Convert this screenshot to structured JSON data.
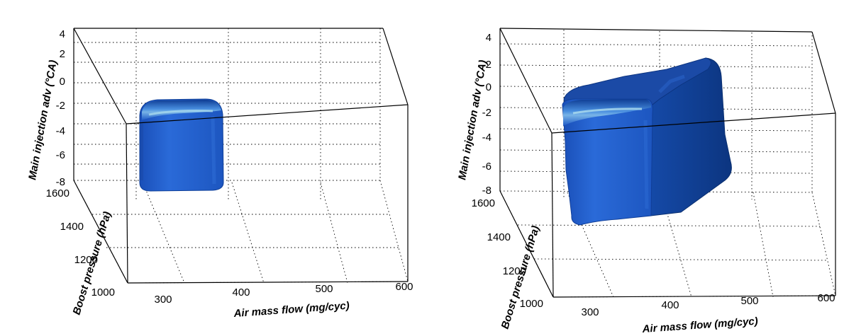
{
  "chart_data": [
    {
      "type": "isosurface-3d",
      "xlabel": "Air mass flow (mg/cyc)",
      "ylabel": "Boost pressure (hPa)",
      "zlabel": "Main injection adv (°CA)",
      "xlim": [
        250,
        600
      ],
      "ylim": [
        1000,
        1600
      ],
      "zlim": [
        -8,
        4
      ],
      "x_ticks": [
        "300",
        "400",
        "500",
        "600"
      ],
      "y_ticks": [
        "1000",
        "1200",
        "1400",
        "1600"
      ],
      "z_ticks": [
        "4",
        "2",
        "0",
        "-2",
        "-4",
        "-6",
        "-8"
      ],
      "grid": true,
      "surface_color": "#1f5cc8",
      "region": {
        "x": [
          300,
          360
        ],
        "y": [
          1580,
          1600
        ],
        "z": [
          -8,
          -1.5
        ]
      }
    },
    {
      "type": "isosurface-3d",
      "xlabel": "Air mass flow (mg/cyc)",
      "ylabel": "Boost pressure (hPa)",
      "zlabel": "Main injection adv (°CA)",
      "xlim": [
        250,
        600
      ],
      "ylim": [
        1000,
        1600
      ],
      "zlim": [
        -8,
        4
      ],
      "x_ticks": [
        "300",
        "400",
        "500",
        "600"
      ],
      "y_ticks": [
        "1000",
        "1200",
        "1400",
        "1600"
      ],
      "z_ticks": [
        "4",
        "2",
        "0",
        "-2",
        "-4",
        "-6",
        "-8"
      ],
      "grid": true,
      "surface_color": "#1f5cc8",
      "region": {
        "x": [
          305,
          490
        ],
        "y": [
          1450,
          1600
        ],
        "z": [
          -8,
          3
        ]
      }
    }
  ]
}
